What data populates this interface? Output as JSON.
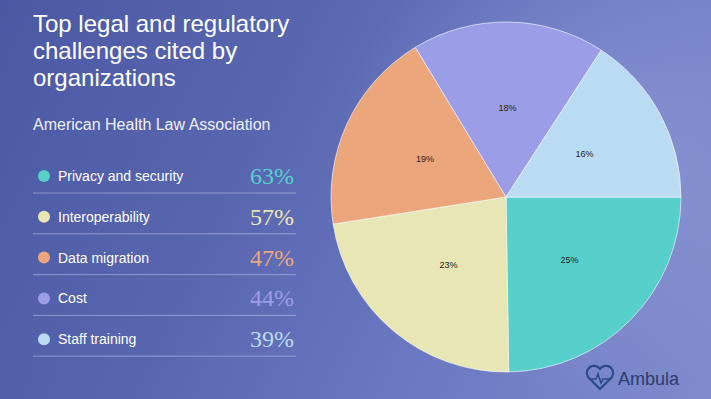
{
  "chart_data": {
    "type": "pie",
    "title": "Top legal and regulatory challenges cited by organizations",
    "subtitle": "American Health Law Association",
    "categories": [
      "Privacy and security",
      "Interoperability",
      "Data migration",
      "Cost",
      "Staff training"
    ],
    "values": [
      25,
      23,
      19,
      18,
      16
    ],
    "value_labels": [
      "25%",
      "23%",
      "19%",
      "18%",
      "16%"
    ],
    "legend_values": [
      63,
      57,
      47,
      44,
      39
    ],
    "legend_value_labels": [
      "63%",
      "57%",
      "47%",
      "44%",
      "39%"
    ],
    "colors": [
      "#57cfcb",
      "#e8e6b4",
      "#eba77b",
      "#9b9de6",
      "#badcf3"
    ],
    "data_labels": true,
    "legend": "left"
  },
  "brand": "Ambula"
}
